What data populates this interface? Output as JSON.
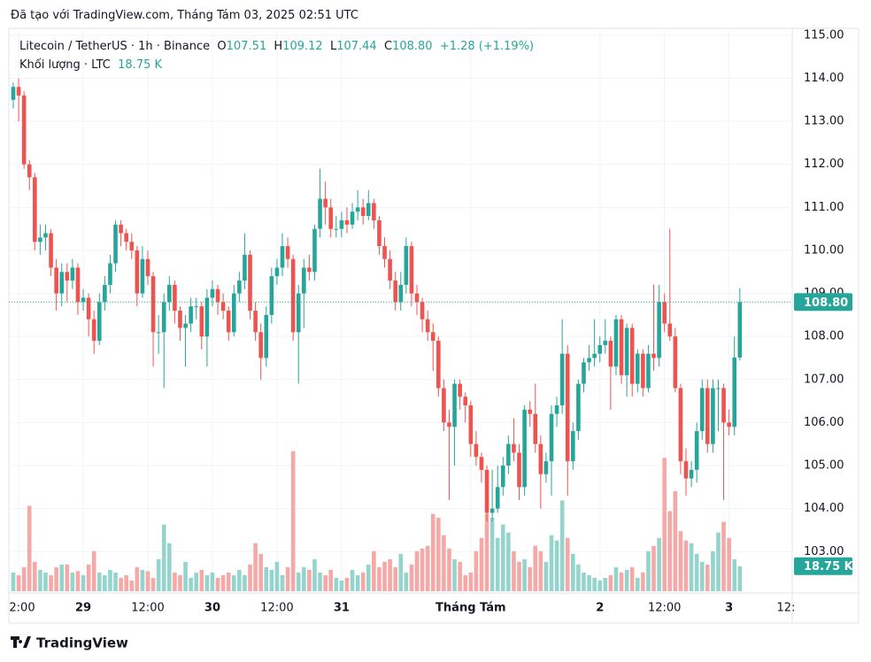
{
  "header": {
    "credit": "Đã tạo với TradingView.com, Tháng Tám 03, 2025 02:51 UTC",
    "footer": "TradingView"
  },
  "legend": {
    "symbol": "Litecoin / TetherUS · 1h · Binance",
    "o_label": "O",
    "open": "107.51",
    "h_label": "H",
    "high": "109.12",
    "l_label": "L",
    "low": "107.44",
    "c_label": "C",
    "close": "108.80",
    "change": "+1.28 (+1.19%)",
    "volume_title": "Khối lượng · LTC",
    "volume": "18.75 K"
  },
  "chart_data": {
    "type": "candlestick",
    "up_color": "#26a69a",
    "down_color": "#ef5350",
    "volume_up_color": "#94d4cd",
    "volume_down_color": "#f5a8a6",
    "ylim": [
      102.08,
      115.1
    ],
    "yticks": [
      {
        "value": 103,
        "label": "103.00"
      },
      {
        "value": 104,
        "label": "104.00"
      },
      {
        "value": 105,
        "label": "105.00"
      },
      {
        "value": 106,
        "label": "106.00"
      },
      {
        "value": 107,
        "label": "107.00"
      },
      {
        "value": 108,
        "label": "108.00"
      },
      {
        "value": 109,
        "label": "109.00"
      },
      {
        "value": 110,
        "label": "110.00"
      },
      {
        "value": 111,
        "label": "111.00"
      },
      {
        "value": 112,
        "label": "112.00"
      },
      {
        "value": 113,
        "label": "113.00"
      },
      {
        "value": 114,
        "label": "114.00"
      },
      {
        "value": 115,
        "label": "115.00"
      }
    ],
    "xticks": [
      {
        "value": 1,
        "label": "2:00"
      },
      {
        "value": 13,
        "label": "29"
      },
      {
        "value": 25,
        "label": "12:00"
      },
      {
        "value": 37,
        "label": "30"
      },
      {
        "value": 49,
        "label": "12:00"
      },
      {
        "value": 61,
        "label": "31"
      },
      {
        "value": 85,
        "label": "Tháng Tám"
      },
      {
        "value": 109,
        "label": "2"
      },
      {
        "value": 121,
        "label": "12:00"
      },
      {
        "value": 133,
        "label": "3"
      },
      {
        "value": 145,
        "label": "12:"
      }
    ],
    "last_price_label": "108.80",
    "last_volume_label": "18.75 K",
    "volume_ylim": [
      0,
      420
    ],
    "candles": [
      [
        113.5,
        113.9,
        113.3,
        113.8
      ],
      [
        113.8,
        114.0,
        113.0,
        113.6
      ],
      [
        113.6,
        113.7,
        111.9,
        112.0
      ],
      [
        112.0,
        112.1,
        111.4,
        111.7
      ],
      [
        111.7,
        111.8,
        110.0,
        110.2
      ],
      [
        110.2,
        110.6,
        109.9,
        110.3
      ],
      [
        110.3,
        110.6,
        110.0,
        110.4
      ],
      [
        110.4,
        110.5,
        109.4,
        109.6
      ],
      [
        109.6,
        109.8,
        108.6,
        109.0
      ],
      [
        109.0,
        109.7,
        108.7,
        109.5
      ],
      [
        109.5,
        109.7,
        108.8,
        109.3
      ],
      [
        109.3,
        109.8,
        109.1,
        109.6
      ],
      [
        109.6,
        109.7,
        108.5,
        108.8
      ],
      [
        108.8,
        109.1,
        108.6,
        108.9
      ],
      [
        108.9,
        109.0,
        108.0,
        108.4
      ],
      [
        108.4,
        108.6,
        107.6,
        107.9
      ],
      [
        107.9,
        109.0,
        107.8,
        108.8
      ],
      [
        108.8,
        109.4,
        108.6,
        109.2
      ],
      [
        109.2,
        109.9,
        109.0,
        109.7
      ],
      [
        109.7,
        110.7,
        109.5,
        110.6
      ],
      [
        110.6,
        110.7,
        110.1,
        110.4
      ],
      [
        110.4,
        110.5,
        110.0,
        110.2
      ],
      [
        110.2,
        110.4,
        109.8,
        110.0
      ],
      [
        110.0,
        110.1,
        108.7,
        109.0
      ],
      [
        109.0,
        110.1,
        108.9,
        109.8
      ],
      [
        109.8,
        110.0,
        109.2,
        109.4
      ],
      [
        109.4,
        109.5,
        107.3,
        108.1
      ],
      [
        108.1,
        108.5,
        107.6,
        108.1
      ],
      [
        108.1,
        109.0,
        106.8,
        108.8
      ],
      [
        108.8,
        109.4,
        108.6,
        109.2
      ],
      [
        109.2,
        109.3,
        108.3,
        108.6
      ],
      [
        108.6,
        108.7,
        107.9,
        108.2
      ],
      [
        108.2,
        108.5,
        107.3,
        108.3
      ],
      [
        108.3,
        108.9,
        108.1,
        108.7
      ],
      [
        108.7,
        108.9,
        108.4,
        108.7
      ],
      [
        108.7,
        108.8,
        107.7,
        108.0
      ],
      [
        108.0,
        109.1,
        107.3,
        108.9
      ],
      [
        108.9,
        109.3,
        108.7,
        109.1
      ],
      [
        109.1,
        109.2,
        108.5,
        108.8
      ],
      [
        108.8,
        109.0,
        108.4,
        108.6
      ],
      [
        108.6,
        108.7,
        107.9,
        108.1
      ],
      [
        108.1,
        109.2,
        108.0,
        109.0
      ],
      [
        109.0,
        109.5,
        108.8,
        109.3
      ],
      [
        109.3,
        110.4,
        109.1,
        109.9
      ],
      [
        109.9,
        110.0,
        108.4,
        108.6
      ],
      [
        108.6,
        108.8,
        107.9,
        108.1
      ],
      [
        108.1,
        108.3,
        107.0,
        107.5
      ],
      [
        107.5,
        108.7,
        107.3,
        108.5
      ],
      [
        108.5,
        109.6,
        108.3,
        109.4
      ],
      [
        109.4,
        109.8,
        109.2,
        109.6
      ],
      [
        109.6,
        110.4,
        109.4,
        110.1
      ],
      [
        110.1,
        110.3,
        109.6,
        109.8
      ],
      [
        109.8,
        109.9,
        107.9,
        108.1
      ],
      [
        108.1,
        109.2,
        106.9,
        109.0
      ],
      [
        109.0,
        109.8,
        108.2,
        109.6
      ],
      [
        109.6,
        109.9,
        109.3,
        109.5
      ],
      [
        109.5,
        110.6,
        109.3,
        110.5
      ],
      [
        110.5,
        111.9,
        110.3,
        111.2
      ],
      [
        111.2,
        111.6,
        110.6,
        111.0
      ],
      [
        111.0,
        111.2,
        110.3,
        110.5
      ],
      [
        110.5,
        110.8,
        110.3,
        110.5
      ],
      [
        110.5,
        110.9,
        110.3,
        110.7
      ],
      [
        110.7,
        111.0,
        110.4,
        110.6
      ],
      [
        110.6,
        111.1,
        110.5,
        110.9
      ],
      [
        110.9,
        111.4,
        110.7,
        111.0
      ],
      [
        111.0,
        111.2,
        110.6,
        110.8
      ],
      [
        110.8,
        111.4,
        110.7,
        111.1
      ],
      [
        111.1,
        111.2,
        110.5,
        110.7
      ],
      [
        110.7,
        110.8,
        109.9,
        110.1
      ],
      [
        110.1,
        110.3,
        109.6,
        109.8
      ],
      [
        109.8,
        110.0,
        109.1,
        109.3
      ],
      [
        109.3,
        109.5,
        108.6,
        108.8
      ],
      [
        108.8,
        109.5,
        108.6,
        109.2
      ],
      [
        109.2,
        110.3,
        109.0,
        110.1
      ],
      [
        110.1,
        110.2,
        108.7,
        109.0
      ],
      [
        109.0,
        109.2,
        108.5,
        108.8
      ],
      [
        108.8,
        108.9,
        108.1,
        108.4
      ],
      [
        108.4,
        108.6,
        107.9,
        108.1
      ],
      [
        108.1,
        108.3,
        107.2,
        107.9
      ],
      [
        107.9,
        108.0,
        106.6,
        106.8
      ],
      [
        106.8,
        107.0,
        105.8,
        106.0
      ],
      [
        106.0,
        106.3,
        104.2,
        105.9
      ],
      [
        105.9,
        107.0,
        105.0,
        106.9
      ],
      [
        106.9,
        107.0,
        106.3,
        106.6
      ],
      [
        106.6,
        106.7,
        106.0,
        106.4
      ],
      [
        106.4,
        106.5,
        105.2,
        105.5
      ],
      [
        105.5,
        105.8,
        105.0,
        105.2
      ],
      [
        105.2,
        105.3,
        104.6,
        104.9
      ],
      [
        104.9,
        105.0,
        103.7,
        103.9
      ],
      [
        103.9,
        104.9,
        103.7,
        104.0
      ],
      [
        104.0,
        105.0,
        103.9,
        104.5
      ],
      [
        104.5,
        105.2,
        104.3,
        105.0
      ],
      [
        105.0,
        105.7,
        104.8,
        105.5
      ],
      [
        105.5,
        106.1,
        105.1,
        105.3
      ],
      [
        105.3,
        105.5,
        104.2,
        104.5
      ],
      [
        104.5,
        106.4,
        104.3,
        106.3
      ],
      [
        106.3,
        106.5,
        105.9,
        106.2
      ],
      [
        106.2,
        106.9,
        105.3,
        105.5
      ],
      [
        105.5,
        105.7,
        104.0,
        104.8
      ],
      [
        104.8,
        105.3,
        104.6,
        105.1
      ],
      [
        105.1,
        106.4,
        104.3,
        106.2
      ],
      [
        106.2,
        106.6,
        105.9,
        106.4
      ],
      [
        106.4,
        108.4,
        106.2,
        107.6
      ],
      [
        107.6,
        107.8,
        104.3,
        105.1
      ],
      [
        105.1,
        106.0,
        104.9,
        105.8
      ],
      [
        105.8,
        107.0,
        105.6,
        106.9
      ],
      [
        106.9,
        107.5,
        106.7,
        107.4
      ],
      [
        107.4,
        107.8,
        107.2,
        107.5
      ],
      [
        107.5,
        108.4,
        107.3,
        107.6
      ],
      [
        107.6,
        108.0,
        107.4,
        107.8
      ],
      [
        107.8,
        108.4,
        107.6,
        107.9
      ],
      [
        107.9,
        108.0,
        106.3,
        107.3
      ],
      [
        107.3,
        108.5,
        107.1,
        108.4
      ],
      [
        108.4,
        108.5,
        106.9,
        107.1
      ],
      [
        107.1,
        108.3,
        106.6,
        108.2
      ],
      [
        108.2,
        108.3,
        106.6,
        106.9
      ],
      [
        106.9,
        107.7,
        106.7,
        107.6
      ],
      [
        107.6,
        107.7,
        106.6,
        106.8
      ],
      [
        106.8,
        107.8,
        106.7,
        107.6
      ],
      [
        107.6,
        109.2,
        107.2,
        107.5
      ],
      [
        107.5,
        109.2,
        107.3,
        108.8
      ],
      [
        108.8,
        109.0,
        108.1,
        108.3
      ],
      [
        108.3,
        110.5,
        107.9,
        108.0
      ],
      [
        108.0,
        108.2,
        106.7,
        106.8
      ],
      [
        106.8,
        106.9,
        104.8,
        105.1
      ],
      [
        105.1,
        105.4,
        104.3,
        104.7
      ],
      [
        104.7,
        105.1,
        104.5,
        104.9
      ],
      [
        104.9,
        106.0,
        104.6,
        105.8
      ],
      [
        105.8,
        107.0,
        105.6,
        106.8
      ],
      [
        106.8,
        107.0,
        105.3,
        105.5
      ],
      [
        105.5,
        107.0,
        105.3,
        106.8
      ],
      [
        106.8,
        107.0,
        105.8,
        106.8
      ],
      [
        106.8,
        106.9,
        104.2,
        106.0
      ],
      [
        106.0,
        106.3,
        105.7,
        105.9
      ],
      [
        105.9,
        108.0,
        105.7,
        107.51
      ],
      [
        107.51,
        109.12,
        107.44,
        108.8
      ]
    ],
    "volume": [
      14,
      12,
      18,
      64,
      22,
      16,
      14,
      12,
      18,
      20,
      20,
      14,
      15,
      12,
      20,
      30,
      14,
      12,
      16,
      14,
      10,
      12,
      8,
      18,
      16,
      15,
      10,
      24,
      50,
      36,
      14,
      12,
      22,
      10,
      14,
      16,
      12,
      14,
      10,
      12,
      14,
      12,
      16,
      12,
      20,
      36,
      28,
      18,
      16,
      22,
      12,
      18,
      105,
      14,
      18,
      16,
      24,
      14,
      12,
      16,
      10,
      8,
      10,
      16,
      12,
      14,
      20,
      30,
      18,
      22,
      24,
      18,
      28,
      14,
      20,
      30,
      32,
      34,
      58,
      55,
      42,
      32,
      24,
      22,
      12,
      14,
      30,
      40,
      58,
      55,
      40,
      50,
      44,
      30,
      22,
      24,
      18,
      34,
      30,
      22,
      42,
      38,
      68,
      40,
      28,
      20,
      14,
      12,
      10,
      8,
      10,
      12,
      18,
      14,
      16,
      18,
      10,
      14,
      30,
      34,
      40,
      100,
      60,
      75,
      45,
      38,
      36,
      28,
      22,
      20,
      30,
      44,
      52,
      40,
      24,
      18.75
    ]
  }
}
